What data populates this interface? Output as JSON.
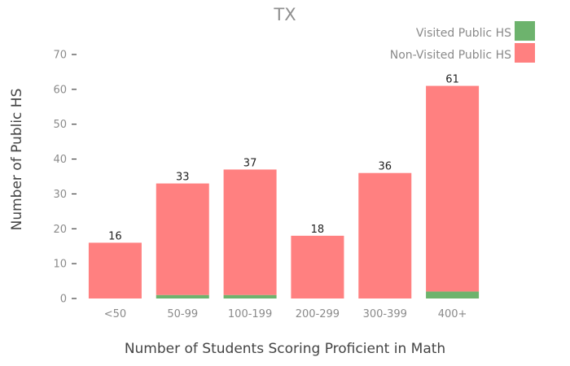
{
  "chart_data": {
    "type": "bar",
    "stacked": true,
    "title": "TX",
    "xlabel": "Number of Students Scoring Proficient in Math",
    "ylabel": "Number of Public HS",
    "categories": [
      "<50",
      "50-99",
      "100-199",
      "200-299",
      "300-399",
      "400+"
    ],
    "series": [
      {
        "name": "Visited Public HS",
        "color": "#6db36d",
        "values": [
          0,
          1,
          1,
          0,
          0,
          2
        ]
      },
      {
        "name": "Non-Visited Public HS",
        "color": "#ff8080",
        "values": [
          16,
          32,
          36,
          18,
          36,
          59
        ]
      }
    ],
    "totals": [
      16,
      33,
      37,
      18,
      36,
      61
    ],
    "ylim": [
      0,
      70
    ],
    "yticks": [
      0,
      10,
      20,
      30,
      40,
      50,
      60,
      70
    ],
    "grid": false,
    "legend_position": "top-right"
  }
}
